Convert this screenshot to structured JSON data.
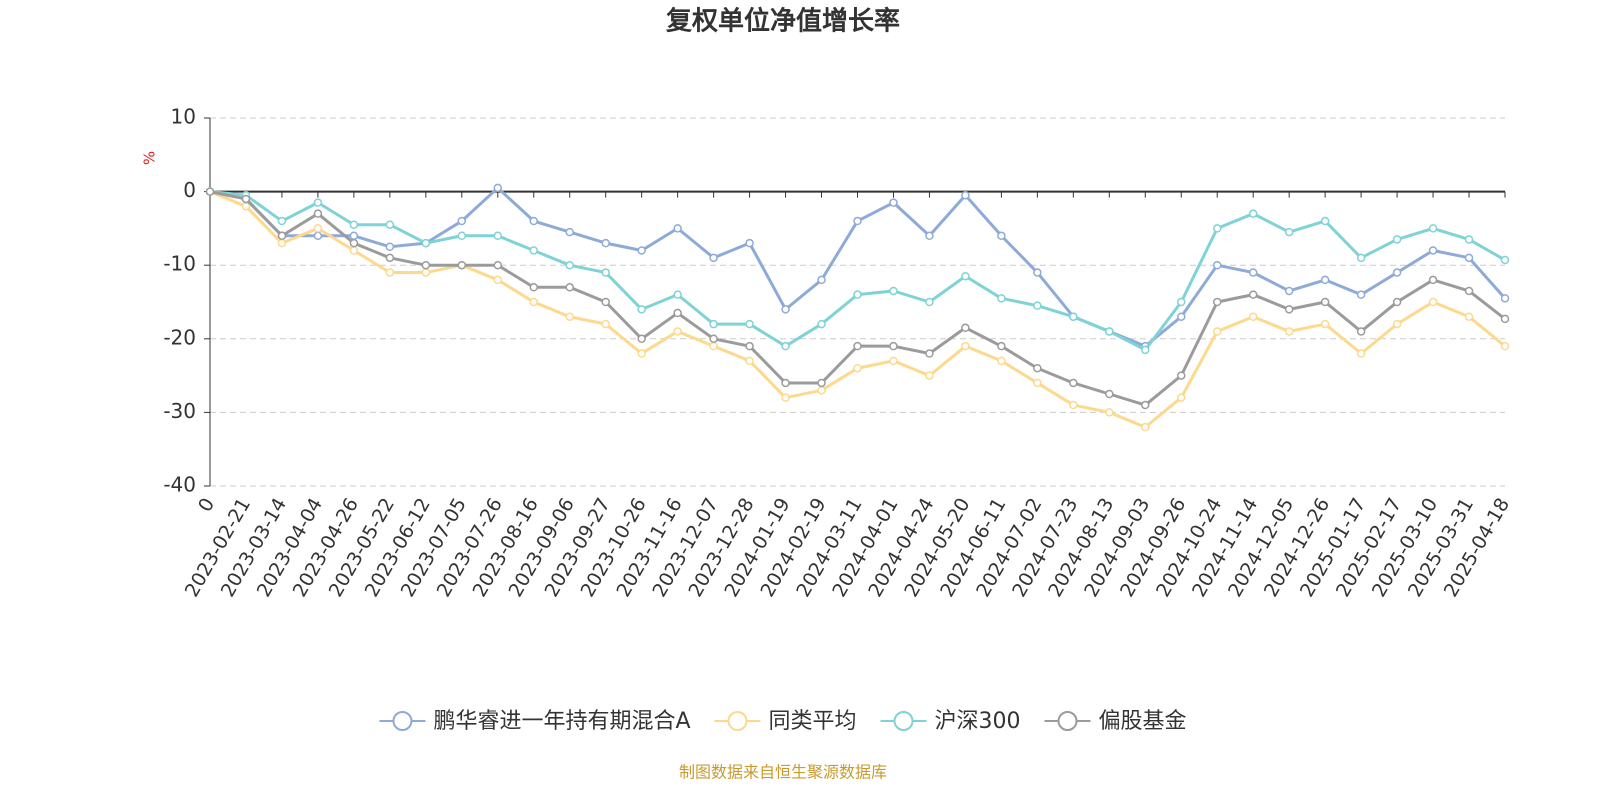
{
  "chart_data": {
    "type": "line",
    "title": "复权单位净值增长率",
    "y_label": "%",
    "footer": "制图数据来自恒生聚源数据库",
    "categories": [
      "0",
      "2023-02-21",
      "2023-03-14",
      "2023-04-04",
      "2023-04-26",
      "2023-05-22",
      "2023-06-12",
      "2023-07-05",
      "2023-07-26",
      "2023-08-16",
      "2023-09-06",
      "2023-09-27",
      "2023-10-26",
      "2023-11-16",
      "2023-12-07",
      "2023-12-28",
      "2024-01-19",
      "2024-02-19",
      "2024-03-11",
      "2024-04-01",
      "2024-04-24",
      "2024-05-20",
      "2024-06-11",
      "2024-07-02",
      "2024-07-23",
      "2024-08-13",
      "2024-09-03",
      "2024-09-26",
      "2024-10-24",
      "2024-11-14",
      "2024-12-05",
      "2024-12-26",
      "2025-01-17",
      "2025-02-17",
      "2025-03-10",
      "2025-03-31",
      "2025-04-18"
    ],
    "series": [
      {
        "name": "鹏华睿进一年持有期混合A",
        "color": "#8eaad8",
        "values": [
          0,
          -1,
          -6,
          -6,
          -6,
          -7.5,
          -7,
          -4,
          0.5,
          -4,
          -5.5,
          -7,
          -8,
          -5,
          -9,
          -7,
          -16,
          -12,
          -4,
          -1.5,
          -6,
          -0.5,
          -6,
          -11,
          -17,
          -19,
          -21,
          -17,
          -10,
          -11,
          -13.5,
          -12,
          -14,
          -11,
          -8,
          -9,
          -14.5
        ]
      },
      {
        "name": "同类平均",
        "color": "#fcd98c",
        "values": [
          0,
          -2,
          -7,
          -5,
          -8,
          -11,
          -11,
          -10,
          -12,
          -15,
          -17,
          -18,
          -22,
          -19,
          -21,
          -23,
          -28,
          -27,
          -24,
          -23,
          -25,
          -21,
          -23,
          -26,
          -29,
          -30,
          -32,
          -28,
          -19,
          -17,
          -19,
          -18,
          -22,
          -18,
          -15,
          -17,
          -21
        ]
      },
      {
        "name": "沪深300",
        "color": "#7fd3d6",
        "values": [
          0,
          -0.5,
          -4,
          -1.5,
          -4.5,
          -4.5,
          -7,
          -6,
          -6,
          -8,
          -10,
          -11,
          -16,
          -14,
          -18,
          -18,
          -21,
          -18,
          -14,
          -13.5,
          -15,
          -11.5,
          -14.5,
          -15.5,
          -17,
          -19,
          -21.5,
          -15,
          -5,
          -3,
          -5.5,
          -4,
          -9,
          -6.5,
          -5,
          -6.5,
          -9.3
        ]
      },
      {
        "name": "偏股基金",
        "color": "#9b9b9b",
        "values": [
          0,
          -1,
          -6,
          -3,
          -7,
          -9,
          -10,
          -10,
          -10,
          -13,
          -13,
          -15,
          -20,
          -16.5,
          -20,
          -21,
          -26,
          -26,
          -21,
          -21,
          -22,
          -18.5,
          -21,
          -24,
          -26,
          -27.5,
          -29,
          -25,
          -15,
          -14,
          -16,
          -15,
          -19,
          -15,
          -12,
          -13.5,
          -17.3
        ]
      }
    ],
    "ylim": [
      -40,
      10
    ],
    "yticks": [
      10,
      0,
      -10,
      -20,
      -30,
      -40
    ],
    "grid": true,
    "legend": "bottom"
  }
}
